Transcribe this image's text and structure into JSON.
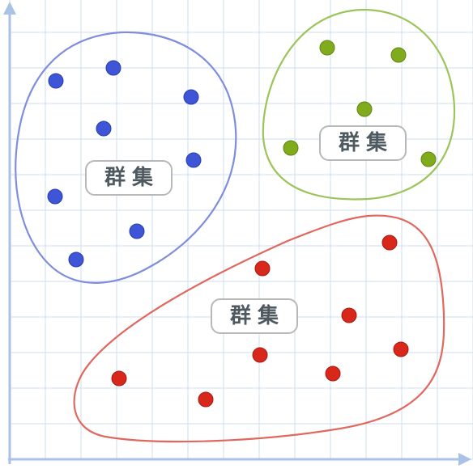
{
  "clusters": [
    {
      "id": "blue",
      "label": "群集",
      "dot_color": "#3d55d6",
      "dot_stroke": "#2a3fae",
      "outline_color": "#7f8edc"
    },
    {
      "id": "green",
      "label": "群集",
      "dot_color": "#7fab1c",
      "dot_stroke": "#5f8612",
      "outline_color": "#9cc45a"
    },
    {
      "id": "red",
      "label": "群集",
      "dot_color": "#d8281c",
      "dot_stroke": "#a81a12",
      "outline_color": "#e0685e"
    }
  ],
  "colors": {
    "grid": "#d6e3f2",
    "axis": "#a9c2e6"
  }
}
